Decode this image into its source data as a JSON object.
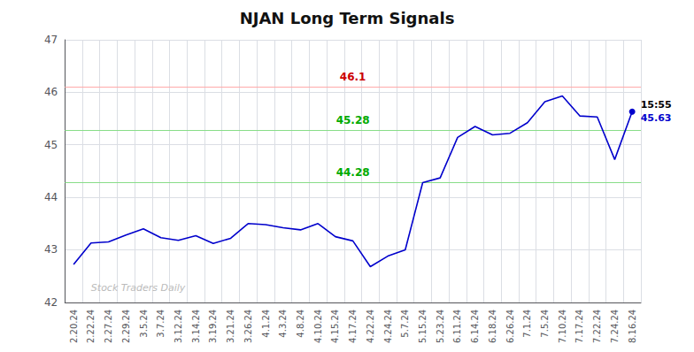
{
  "chart_data": {
    "type": "line",
    "title": "NJAN Long Term Signals",
    "categories": [
      "2.20.24",
      "2.22.24",
      "2.27.24",
      "2.29.24",
      "3.5.24",
      "3.7.24",
      "3.12.24",
      "3.14.24",
      "3.19.24",
      "3.21.24",
      "3.26.24",
      "4.1.24",
      "4.3.24",
      "4.8.24",
      "4.10.24",
      "4.15.24",
      "4.17.24",
      "4.22.24",
      "4.24.24",
      "5.7.24",
      "5.15.24",
      "5.23.24",
      "6.11.24",
      "6.14.24",
      "6.18.24",
      "6.26.24",
      "7.1.24",
      "7.5.24",
      "7.10.24",
      "7.17.24",
      "7.22.24",
      "7.24.24",
      "8.16.24"
    ],
    "values": [
      42.72,
      43.13,
      43.15,
      43.28,
      43.4,
      43.23,
      43.18,
      43.27,
      43.12,
      43.22,
      43.5,
      43.48,
      43.42,
      43.38,
      43.5,
      43.25,
      43.17,
      42.68,
      42.88,
      43.0,
      44.28,
      44.37,
      45.14,
      45.35,
      45.19,
      45.22,
      45.42,
      45.82,
      45.93,
      45.55,
      45.53,
      44.72,
      45.63
    ],
    "color": "#0000cc",
    "ylim": [
      42,
      47
    ],
    "yticks": [
      42,
      43,
      44,
      45,
      46,
      47
    ],
    "grid": true,
    "reference_lines": [
      {
        "value": 46.1,
        "label": "46.1",
        "color": "#ffaaaa",
        "label_color": "#cc0000"
      },
      {
        "value": 45.28,
        "label": "45.28",
        "color": "#88dd88",
        "label_color": "#00aa00"
      },
      {
        "value": 44.28,
        "label": "44.28",
        "color": "#88dd88",
        "label_color": "#00aa00"
      }
    ],
    "end_labels": [
      "15:55",
      "45.63"
    ],
    "watermark": "Stock Traders Daily"
  }
}
